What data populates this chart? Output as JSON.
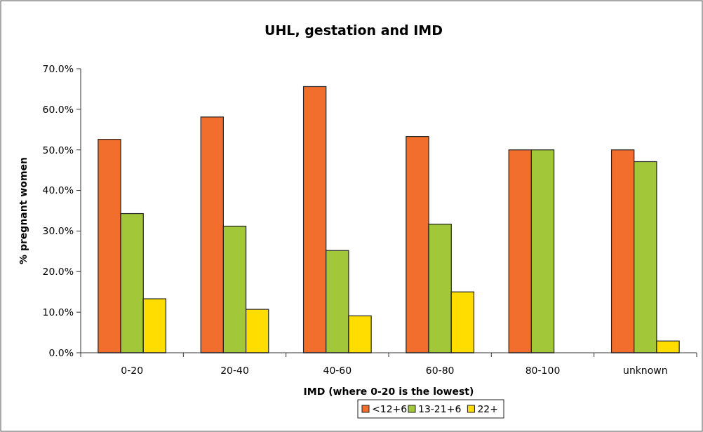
{
  "chart_data": {
    "type": "bar",
    "title": "UHL, gestation and IMD",
    "xlabel": "IMD (where 0-20 is the lowest)",
    "ylabel": "% pregnant women",
    "categories": [
      "0-20",
      "20-40",
      "40-60",
      "60-80",
      "80-100",
      "unknown"
    ],
    "series": [
      {
        "name": "<12+6",
        "color": "#f26e2c",
        "values": [
          52.6,
          58.1,
          65.6,
          53.3,
          50.0,
          50.0
        ]
      },
      {
        "name": "13-21+6",
        "color": "#a2c83a",
        "values": [
          34.3,
          31.2,
          25.2,
          31.7,
          50.0,
          47.1
        ]
      },
      {
        "name": "22+",
        "color": "#ffdd00",
        "values": [
          13.3,
          10.7,
          9.1,
          15.0,
          null,
          2.9
        ]
      }
    ],
    "ylim": [
      0,
      70
    ],
    "yticks": [
      {
        "value": 0,
        "label": "0.0%"
      },
      {
        "value": 10,
        "label": "10.0%"
      },
      {
        "value": 20,
        "label": "20.0%"
      },
      {
        "value": 30,
        "label": "30.0%"
      },
      {
        "value": 40,
        "label": "40.0%"
      },
      {
        "value": 50,
        "label": "50.0%"
      },
      {
        "value": 60,
        "label": "60.0%"
      },
      {
        "value": 70,
        "label": "70.0%"
      }
    ],
    "grid": false,
    "legend": "bottom"
  }
}
